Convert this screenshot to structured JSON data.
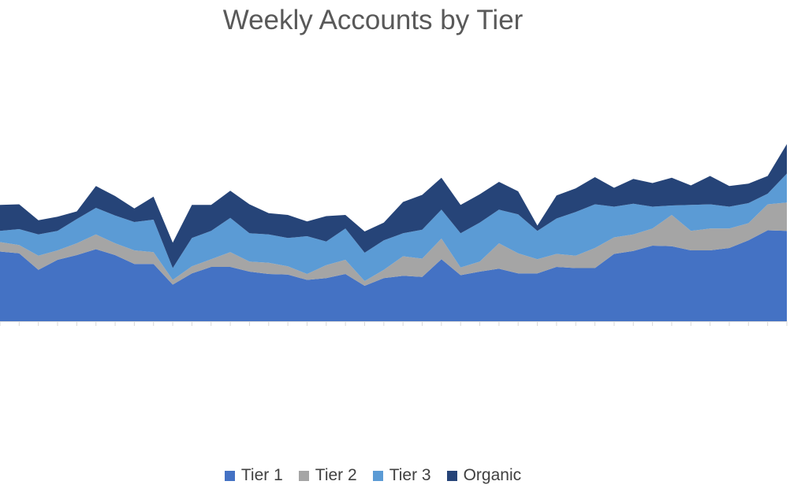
{
  "chart_data": {
    "type": "area",
    "stacked": true,
    "title": "Weekly Accounts by Tier",
    "xlabel": "",
    "ylabel": "",
    "y_axis_visible": false,
    "x_tick_labels_visible": false,
    "grid": false,
    "legend_position": "bottom",
    "series": [
      {
        "name": "Tier 1",
        "color": "#4472c4",
        "values": [
          118,
          115,
          87,
          104,
          112,
          122,
          112,
          97,
          97,
          62,
          81,
          92,
          92,
          84,
          80,
          79,
          70,
          73,
          80,
          60,
          73,
          77,
          75,
          105,
          78,
          84,
          89,
          81,
          81,
          92,
          90,
          90,
          114,
          119,
          128,
          127,
          120,
          120,
          124,
          137,
          154,
          153
        ]
      },
      {
        "name": "Tier 2",
        "color": "#a5a5a5",
        "values": [
          16,
          14,
          24,
          16,
          20,
          25,
          20,
          23,
          20,
          8,
          12,
          13,
          25,
          17,
          19,
          14,
          10,
          22,
          24,
          8,
          14,
          33,
          31,
          35,
          13,
          17,
          43,
          34,
          24,
          22,
          21,
          34,
          28,
          28,
          29,
          53,
          33,
          37,
          33,
          29,
          44,
          48
        ]
      },
      {
        "name": "Tier 3",
        "color": "#5b9bd5",
        "values": [
          19,
          27,
          36,
          33,
          41,
          45,
          47,
          48,
          55,
          20,
          48,
          48,
          58,
          48,
          48,
          48,
          64,
          40,
          53,
          48,
          50,
          39,
          49,
          49,
          58,
          66,
          57,
          66,
          48,
          60,
          74,
          74,
          52,
          52,
          37,
          16,
          44,
          41,
          37,
          34,
          18,
          49
        ]
      },
      {
        "name": "Organic",
        "color": "#264478",
        "values": [
          44,
          42,
          24,
          24,
          13,
          37,
          33,
          23,
          39,
          43,
          56,
          44,
          46,
          49,
          36,
          39,
          25,
          43,
          23,
          36,
          30,
          53,
          59,
          54,
          48,
          48,
          47,
          39,
          9,
          39,
          40,
          46,
          32,
          42,
          40,
          47,
          33,
          48,
          35,
          33,
          30,
          50
        ]
      }
    ]
  }
}
